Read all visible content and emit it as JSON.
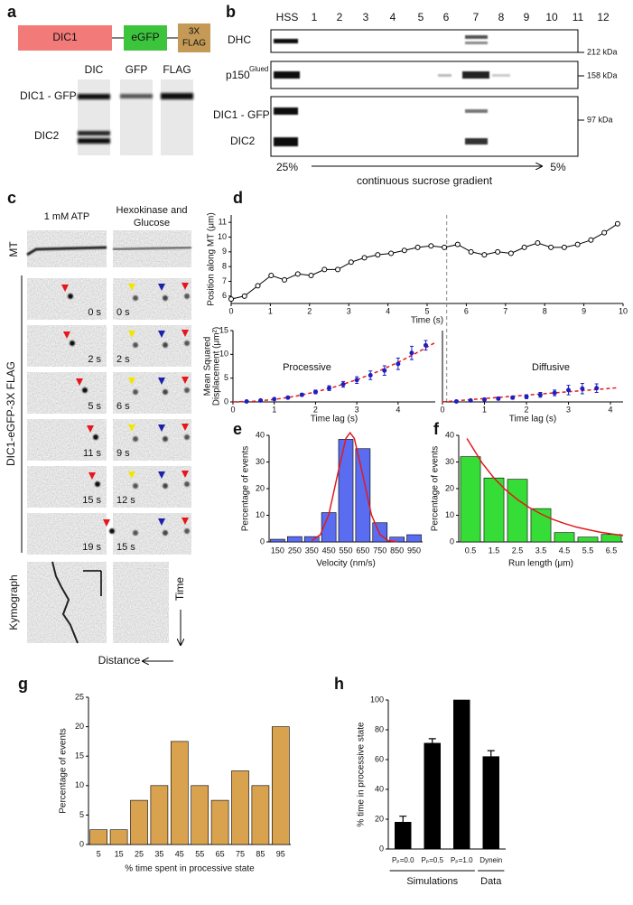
{
  "panel_labels": [
    "a",
    "b",
    "c",
    "d",
    "e",
    "f",
    "g",
    "h"
  ],
  "panel_a": {
    "construct": [
      "DIC1",
      "eGFP",
      "3X",
      "FLAG"
    ],
    "lanes": [
      "DIC",
      "GFP",
      "FLAG"
    ],
    "bands": [
      "DIC1 - GFP",
      "DIC2"
    ]
  },
  "panel_b": {
    "columns": [
      "HSS",
      "1",
      "2",
      "3",
      "4",
      "5",
      "6",
      "7",
      "8",
      "9",
      "10",
      "11",
      "12"
    ],
    "rows": [
      "DHC",
      "p150",
      "DIC1 - GFP",
      "DIC2"
    ],
    "row_superscript": "Glued",
    "markers": [
      "212 kDa",
      "158 kDa",
      "97 kDa"
    ],
    "gradient": {
      "start": "25%",
      "end": "5%",
      "label": "continuous sucrose gradient"
    }
  },
  "panel_c": {
    "conditions": [
      "1 mM ATP",
      "Hexokinase and",
      "Glucose"
    ],
    "row_labels": [
      "MT",
      "DIC1-eGFP-3X FLAG",
      "Kymograph"
    ],
    "times_atp": [
      "0 s",
      "2 s",
      "5 s",
      "11 s",
      "15 s",
      "19 s"
    ],
    "times_hexo": [
      "0 s",
      "2 s",
      "6 s",
      "9 s",
      "12 s",
      "15 s"
    ],
    "axes": [
      "Time",
      "Distance"
    ]
  },
  "chart_data": [
    {
      "type": "line",
      "x_label": "Time (s)",
      "y_label": "Position along MT (μm)",
      "x": [
        0,
        0.34,
        0.68,
        1.02,
        1.36,
        1.7,
        2.04,
        2.38,
        2.72,
        3.06,
        3.4,
        3.74,
        4.08,
        4.42,
        4.76,
        5.1,
        5.44,
        5.78,
        6.12,
        6.46,
        6.8,
        7.14,
        7.48,
        7.82,
        8.16,
        8.5,
        8.84,
        9.18,
        9.52,
        9.86
      ],
      "values": [
        5.8,
        6.0,
        6.7,
        7.4,
        7.1,
        7.5,
        7.4,
        7.8,
        7.8,
        8.3,
        8.6,
        8.8,
        8.9,
        9.1,
        9.3,
        9.4,
        9.3,
        9.5,
        9.0,
        8.8,
        9.0,
        8.9,
        9.3,
        9.6,
        9.3,
        9.3,
        9.5,
        9.8,
        10.3,
        10.9
      ],
      "xlim": [
        0,
        10
      ],
      "ylim": [
        5.5,
        11.5
      ],
      "xticks": [
        0,
        1,
        2,
        3,
        4,
        5,
        6,
        7,
        8,
        9,
        10
      ],
      "yticks": [
        6,
        7,
        8,
        9,
        10,
        11
      ],
      "color": "#000000",
      "divider_x": 5.5,
      "divider_color": "#888888"
    },
    {
      "type": "scatter",
      "annotation": "Processive",
      "x_label": "Time lag (s)",
      "y_label": [
        "Mean Squared",
        "Displacement (μm²)"
      ],
      "x": [
        0.33,
        0.67,
        1.0,
        1.33,
        1.67,
        2.0,
        2.33,
        2.67,
        3.0,
        3.33,
        3.67,
        4.0,
        4.33,
        4.67
      ],
      "values": [
        0.1,
        0.3,
        0.6,
        0.9,
        1.5,
        2.1,
        2.9,
        3.7,
        4.6,
        5.6,
        6.6,
        8.0,
        10.3,
        11.9
      ],
      "errors": [
        0.1,
        0.15,
        0.2,
        0.25,
        0.3,
        0.4,
        0.5,
        0.6,
        0.7,
        0.9,
        1.0,
        1.2,
        1.4,
        1.0
      ],
      "color": "#1f1fbf",
      "fit": {
        "x": [
          0,
          0.5,
          1,
          1.5,
          2,
          2.5,
          3,
          3.5,
          4,
          4.5,
          4.9
        ],
        "y": [
          0,
          0.13,
          0.52,
          1.17,
          2.08,
          3.25,
          4.68,
          6.37,
          8.32,
          10.53,
          12.49
        ],
        "color": "#e31a1c"
      },
      "xlim": [
        0,
        4.9
      ],
      "ylim": [
        0,
        15
      ],
      "xticks": [
        0,
        1,
        2,
        3,
        4
      ],
      "yticks": [
        0,
        5,
        10,
        15
      ]
    },
    {
      "type": "scatter",
      "annotation": "Diffusive",
      "x_label": "Time lag (s)",
      "x": [
        0.33,
        0.67,
        1.0,
        1.33,
        1.67,
        2.0,
        2.33,
        2.67,
        3.0,
        3.33,
        3.67
      ],
      "values": [
        0.1,
        0.3,
        0.5,
        0.7,
        0.9,
        1.1,
        1.5,
        1.9,
        2.5,
        2.8,
        2.9
      ],
      "errors": [
        0.1,
        0.1,
        0.2,
        0.3,
        0.3,
        0.4,
        0.5,
        0.6,
        1.0,
        1.1,
        0.9
      ],
      "color": "#1f1fbf",
      "fit": {
        "x": [
          0,
          4.2
        ],
        "y": [
          0,
          3.0
        ],
        "color": "#e31a1c"
      },
      "xlim": [
        0,
        4.3
      ],
      "ylim": [
        0,
        15
      ],
      "xticks": [
        0,
        1,
        2,
        3,
        4
      ]
    },
    {
      "type": "bar",
      "x_label": "Velocity (nm/s)",
      "y_label": "Percentage of events",
      "categories": [
        150,
        250,
        350,
        450,
        550,
        650,
        750,
        850,
        950
      ],
      "values": [
        1,
        2,
        2,
        11,
        38.5,
        35,
        7.2,
        1.8,
        2.7
      ],
      "color": "#5a6cf0",
      "fit": {
        "x": [
          350,
          400,
          450,
          500,
          550,
          575,
          600,
          650,
          700,
          750,
          800,
          850
        ],
        "y": [
          0.46,
          2.7,
          10.2,
          24.9,
          38.8,
          41,
          38.8,
          24.9,
          10.2,
          2.7,
          0.46,
          0.1
        ],
        "color": "#e31a1c"
      },
      "ylim": [
        0,
        40
      ],
      "yticks": [
        0,
        10,
        20,
        30,
        40
      ]
    },
    {
      "type": "bar",
      "x_label": "Run length (μm)",
      "y_label": "Percentage of events",
      "categories": [
        0.5,
        1.5,
        2.5,
        3.5,
        4.5,
        5.5,
        6.5
      ],
      "values": [
        32,
        24,
        23.5,
        12.5,
        3.5,
        1.8,
        2.8
      ],
      "color": "#36dd36",
      "fit": {
        "x": [
          0.35,
          1,
          1.5,
          2,
          2.5,
          3,
          3.5,
          4,
          4.5,
          5,
          5.5,
          6,
          6.5,
          7
        ],
        "y": [
          38.8,
          29.6,
          24.0,
          19.5,
          15.9,
          12.9,
          10.5,
          8.5,
          6.9,
          5.6,
          4.6,
          3.7,
          3.0,
          2.4
        ],
        "color": "#e31a1c"
      },
      "ylim": [
        0,
        40
      ],
      "yticks": [
        0,
        10,
        20,
        30,
        40
      ]
    },
    {
      "type": "bar",
      "x_label": "% time spent in processive state",
      "y_label": "Percentage of events",
      "categories": [
        5,
        15,
        25,
        35,
        45,
        55,
        65,
        75,
        85,
        95
      ],
      "values": [
        2.5,
        2.5,
        7.5,
        10,
        17.5,
        10,
        7.5,
        12.5,
        10,
        20
      ],
      "color": "#d9a24e",
      "ylim": [
        0,
        25
      ],
      "yticks": [
        0,
        5,
        10,
        15,
        20,
        25
      ]
    },
    {
      "type": "bar",
      "y_label": "% time in processive state",
      "categories": [
        "Pₚ=0.0",
        "Pₚ=0.5",
        "Pₚ=1.0",
        "Dynein"
      ],
      "values": [
        18,
        71,
        100,
        62
      ],
      "errors": [
        4,
        3,
        null,
        4
      ],
      "color": "#000000",
      "ylim": [
        0,
        100
      ],
      "yticks": [
        0,
        20,
        40,
        60,
        80,
        100
      ],
      "group_labels": [
        "Simulations",
        "Data"
      ]
    }
  ]
}
